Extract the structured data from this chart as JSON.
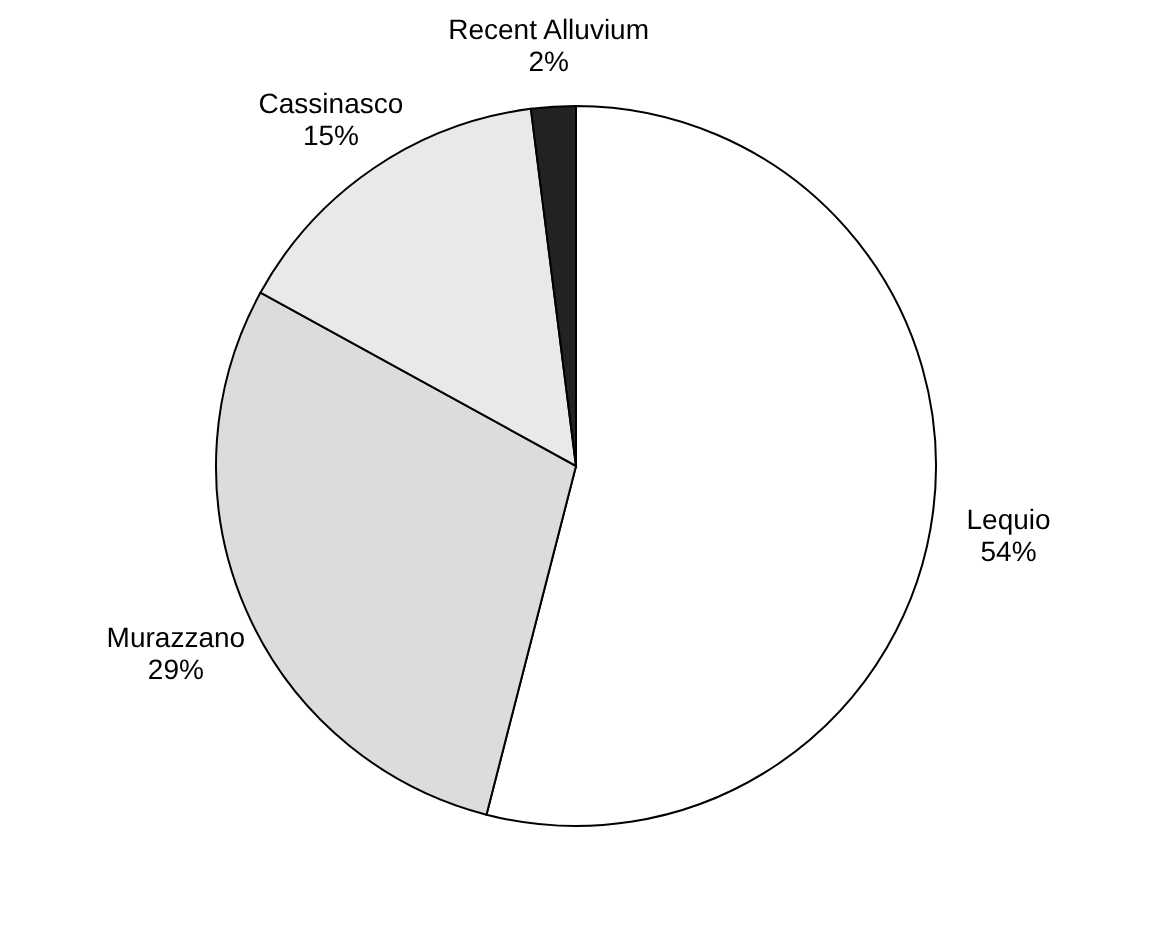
{
  "chart_data": {
    "type": "pie",
    "categories": [
      "Lequio",
      "Murazzano",
      "Cassinasco",
      "Recent Alluvium"
    ],
    "values": [
      54,
      29,
      15,
      2
    ],
    "colors": [
      "#ffffff",
      "#dcdcdc",
      "#e9e9e9",
      "#222222"
    ],
    "value_labels": [
      "54%",
      "29%",
      "15%",
      "2%"
    ],
    "legend": false
  }
}
